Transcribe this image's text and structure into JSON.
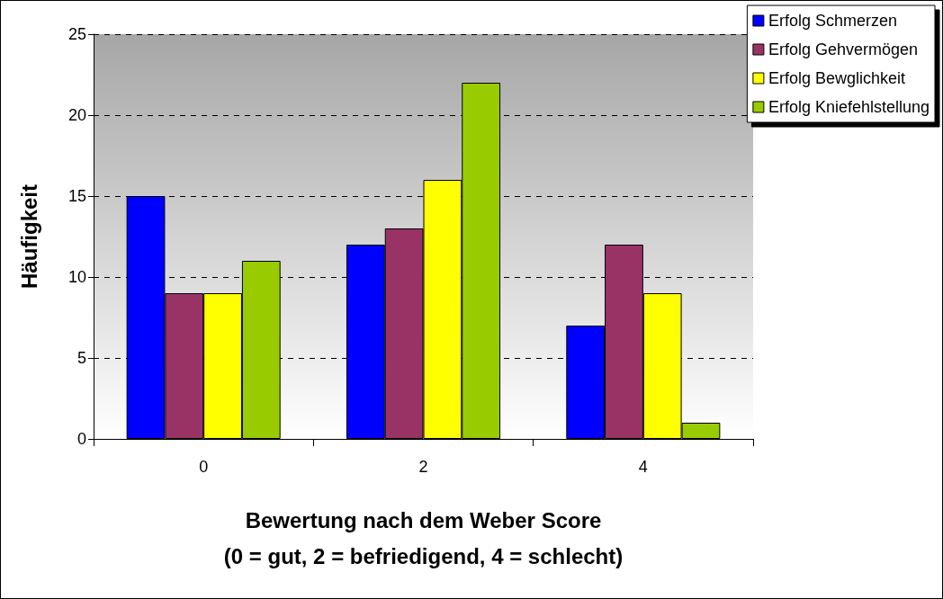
{
  "chart_data": {
    "type": "bar",
    "xlabel": "Bewertung nach dem Weber Score\n(0 = gut, 2 = befriedigend, 4 = schlecht)",
    "ylabel": "Häufigkeit",
    "categories": [
      "0",
      "2",
      "4"
    ],
    "series": [
      {
        "name": "Erfolg Schmerzen",
        "color": "#0000ff",
        "values": [
          15,
          12,
          7
        ]
      },
      {
        "name": "Erfolg Gehvermögen",
        "color": "#993366",
        "values": [
          9,
          13,
          12
        ]
      },
      {
        "name": "Erfolg Bewglichkeit",
        "color": "#ffff00",
        "values": [
          9,
          16,
          9
        ]
      },
      {
        "name": "Erfolg Kniefehlstellung",
        "color": "#99cc00",
        "values": [
          11,
          22,
          1
        ]
      }
    ],
    "ylim": [
      0,
      25
    ],
    "yticks": [
      0,
      5,
      10,
      15,
      20,
      25
    ],
    "grid": "y",
    "legend": "top right"
  }
}
